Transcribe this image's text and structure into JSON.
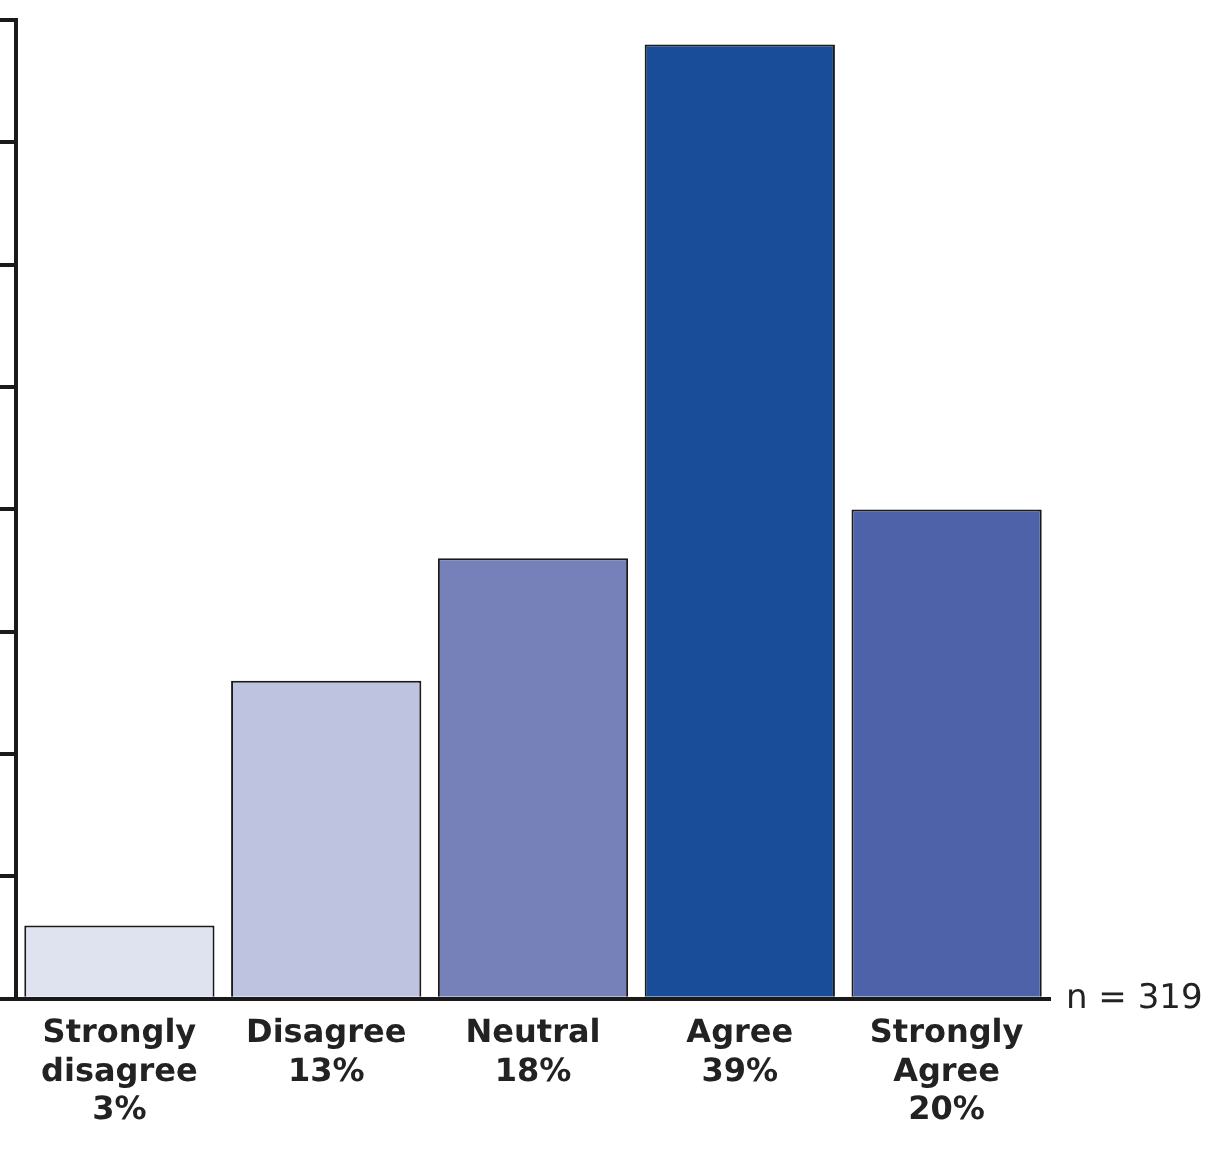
{
  "chart_data": {
    "type": "bar",
    "categories": [
      "Strongly disagree",
      "Disagree",
      "Neutral",
      "Agree",
      "Strongly Agree"
    ],
    "values": [
      3,
      13,
      18,
      39,
      20
    ],
    "value_labels": [
      "3%",
      "13%",
      "18%",
      "39%",
      "20%"
    ],
    "colors": [
      "#dfe3f0",
      "#bec4df",
      "#7581b8",
      "#1a4d99",
      "#4d62a8"
    ],
    "annotations": [
      "n = 319"
    ],
    "grid": false,
    "legend": false
  }
}
